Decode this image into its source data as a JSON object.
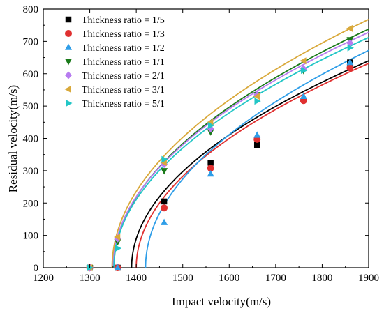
{
  "chart_data": {
    "type": "scatter",
    "xlabel": "Impact velocity(m/s)",
    "ylabel": "Residual velocity(m/s)",
    "xlim": [
      1200,
      1900
    ],
    "ylim": [
      0,
      800
    ],
    "xticks": [
      "1200",
      "1300",
      "1400",
      "1500",
      "1600",
      "1700",
      "1800",
      "1900"
    ],
    "yticks": [
      "0",
      "100",
      "200",
      "300",
      "400",
      "500",
      "600",
      "700",
      "800"
    ],
    "grid": false,
    "legend_position": "top-left",
    "series": [
      {
        "name": "Thickness ratio = 1/5",
        "color": "#000000",
        "marker": "square",
        "points": [
          [
            1300,
            0
          ],
          [
            1360,
            0
          ],
          [
            1460,
            205
          ],
          [
            1560,
            325
          ],
          [
            1660,
            380
          ],
          [
            1860,
            635
          ]
        ],
        "fit": {
          "v0": 1390,
          "vmax": 1900,
          "end_value": 640
        }
      },
      {
        "name": "Thickness ratio = 1/3",
        "color": "#e03030",
        "marker": "circle",
        "points": [
          [
            1300,
            0
          ],
          [
            1360,
            0
          ],
          [
            1460,
            185
          ],
          [
            1560,
            308
          ],
          [
            1660,
            397
          ],
          [
            1760,
            517
          ],
          [
            1860,
            618
          ]
        ],
        "fit": {
          "v0": 1400,
          "vmax": 1900,
          "end_value": 632
        }
      },
      {
        "name": "Thickness ratio = 1/2",
        "color": "#2f9ee8",
        "marker": "triangle-up",
        "points": [
          [
            1300,
            0
          ],
          [
            1360,
            0
          ],
          [
            1460,
            140
          ],
          [
            1560,
            290
          ],
          [
            1660,
            410
          ],
          [
            1760,
            530
          ],
          [
            1860,
            635
          ]
        ],
        "fit": {
          "v0": 1420,
          "vmax": 1900,
          "end_value": 672
        }
      },
      {
        "name": "Thickness ratio = 1/1",
        "color": "#1a7a1a",
        "marker": "triangle-down",
        "points": [
          [
            1300,
            0
          ],
          [
            1360,
            80
          ],
          [
            1460,
            300
          ],
          [
            1560,
            420
          ],
          [
            1660,
            535
          ],
          [
            1760,
            610
          ],
          [
            1860,
            705
          ]
        ],
        "fit": {
          "v0": 1352,
          "vmax": 1900,
          "end_value": 738
        }
      },
      {
        "name": "Thickness ratio = 2/1",
        "color": "#b77cf0",
        "marker": "diamond",
        "points": [
          [
            1300,
            0
          ],
          [
            1360,
            90
          ],
          [
            1460,
            320
          ],
          [
            1560,
            430
          ],
          [
            1660,
            535
          ],
          [
            1760,
            615
          ],
          [
            1860,
            695
          ]
        ],
        "fit": {
          "v0": 1350,
          "vmax": 1900,
          "end_value": 728
        }
      },
      {
        "name": "Thickness ratio = 3/1",
        "color": "#d9a93b",
        "marker": "triangle-left",
        "points": [
          [
            1300,
            0
          ],
          [
            1360,
            95
          ],
          [
            1460,
            325
          ],
          [
            1560,
            450
          ],
          [
            1660,
            530
          ],
          [
            1760,
            640
          ],
          [
            1860,
            740
          ]
        ],
        "fit": {
          "v0": 1348,
          "vmax": 1900,
          "end_value": 768
        }
      },
      {
        "name": "Thickness ratio = 5/1",
        "color": "#22c6c6",
        "marker": "triangle-right",
        "points": [
          [
            1300,
            0
          ],
          [
            1360,
            60
          ],
          [
            1460,
            335
          ],
          [
            1560,
            440
          ],
          [
            1660,
            515
          ],
          [
            1760,
            610
          ],
          [
            1860,
            680
          ]
        ],
        "fit": {
          "v0": 1352,
          "vmax": 1900,
          "end_value": 712
        }
      }
    ]
  }
}
